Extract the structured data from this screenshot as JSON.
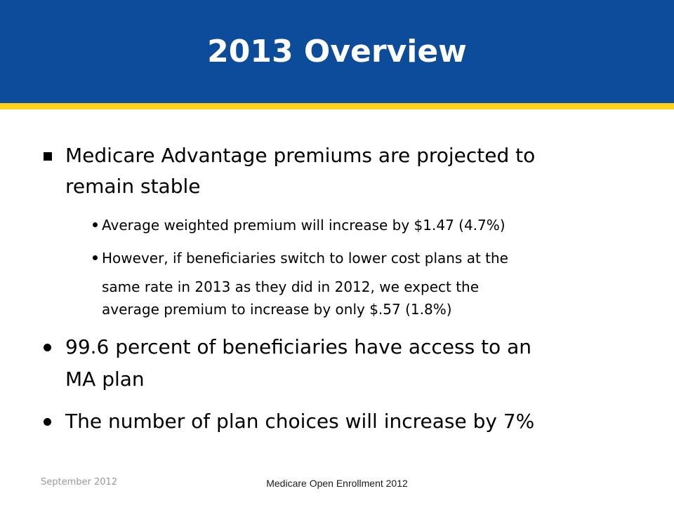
{
  "slide": {
    "title": "2013 Overview",
    "bullets": [
      {
        "text_line1": "Medicare Advantage premiums are projected to",
        "text_line2": "remain stable",
        "sub_bullets": [
          {
            "text_line1": "Average weighted premium will increase by $1.47 (4.7%)"
          },
          {
            "text_line1": "However, if beneficiaries switch to lower cost plans at the",
            "text_line2": "same rate in 2013 as they did in 2012, we expect the",
            "text_line3": "average premium to increase by only $.57 (1.8%)"
          }
        ]
      },
      {
        "text_line1": "99.6 percent of beneficiaries have access to an",
        "text_line2": "MA plan"
      },
      {
        "text_line1": "The number of plan choices will increase by 7%"
      }
    ]
  },
  "footer": {
    "date": "September 2012",
    "center_text": "Medicare Open Enrollment 2012"
  },
  "colors": {
    "header_blue": "#0d4c9a",
    "header_stripe_gold": "#ffd11c"
  }
}
